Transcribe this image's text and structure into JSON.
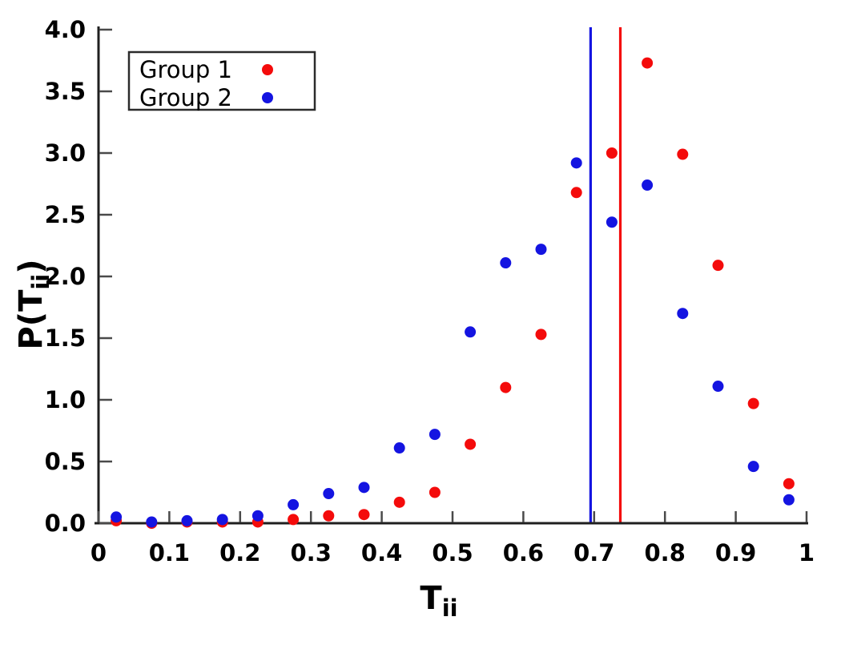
{
  "figure": {
    "background": "#ffffff",
    "axis_color": "#1f1f1f",
    "tick_color": "#4a4a4a",
    "text_color": "#000000"
  },
  "chart_data": {
    "type": "scatter",
    "title": "",
    "xlabel": {
      "main": "T",
      "sub": "ii"
    },
    "ylabel": {
      "pre": "P(T",
      "sub": "ii",
      "post": ")"
    },
    "xlim": [
      0,
      1
    ],
    "ylim": [
      0,
      4
    ],
    "grid": false,
    "legend_position": "top-left",
    "x_ticks": {
      "values": [
        0,
        0.1,
        0.2,
        0.3,
        0.4,
        0.5,
        0.6,
        0.7,
        0.8,
        0.9,
        1
      ],
      "labels": [
        "0",
        "0.1",
        "0.2",
        "0.3",
        "0.4",
        "0.5",
        "0.6",
        "0.7",
        "0.8",
        "0.9",
        "1"
      ]
    },
    "y_ticks": {
      "values": [
        0,
        0.5,
        1,
        1.5,
        2,
        2.5,
        3,
        3.5,
        4
      ],
      "labels": [
        "0.0",
        "0.5",
        "1.0",
        "1.5",
        "2.0",
        "2.5",
        "3.0",
        "3.5",
        "4.0"
      ]
    },
    "x": [
      0.025,
      0.075,
      0.125,
      0.175,
      0.225,
      0.275,
      0.325,
      0.375,
      0.425,
      0.475,
      0.525,
      0.575,
      0.625,
      0.675,
      0.725,
      0.775,
      0.825,
      0.875,
      0.925,
      0.975
    ],
    "series": [
      {
        "name": "Group 1",
        "color": "#f40b0b",
        "marker": "circle",
        "values": [
          0.02,
          0.0,
          0.01,
          0.01,
          0.01,
          0.03,
          0.06,
          0.07,
          0.17,
          0.25,
          0.64,
          1.1,
          1.53,
          2.68,
          3.0,
          3.73,
          2.99,
          2.09,
          0.97,
          0.32
        ]
      },
      {
        "name": "Group 2",
        "color": "#1414e1",
        "marker": "circle",
        "values": [
          0.05,
          0.01,
          0.02,
          0.03,
          0.06,
          0.15,
          0.24,
          0.29,
          0.61,
          0.72,
          1.55,
          2.11,
          2.22,
          2.92,
          2.44,
          2.74,
          1.7,
          1.11,
          0.46,
          0.19
        ]
      }
    ],
    "vlines": [
      {
        "x": 0.695,
        "color": "#1414e1"
      },
      {
        "x": 0.737,
        "color": "#f40b0b"
      }
    ]
  }
}
